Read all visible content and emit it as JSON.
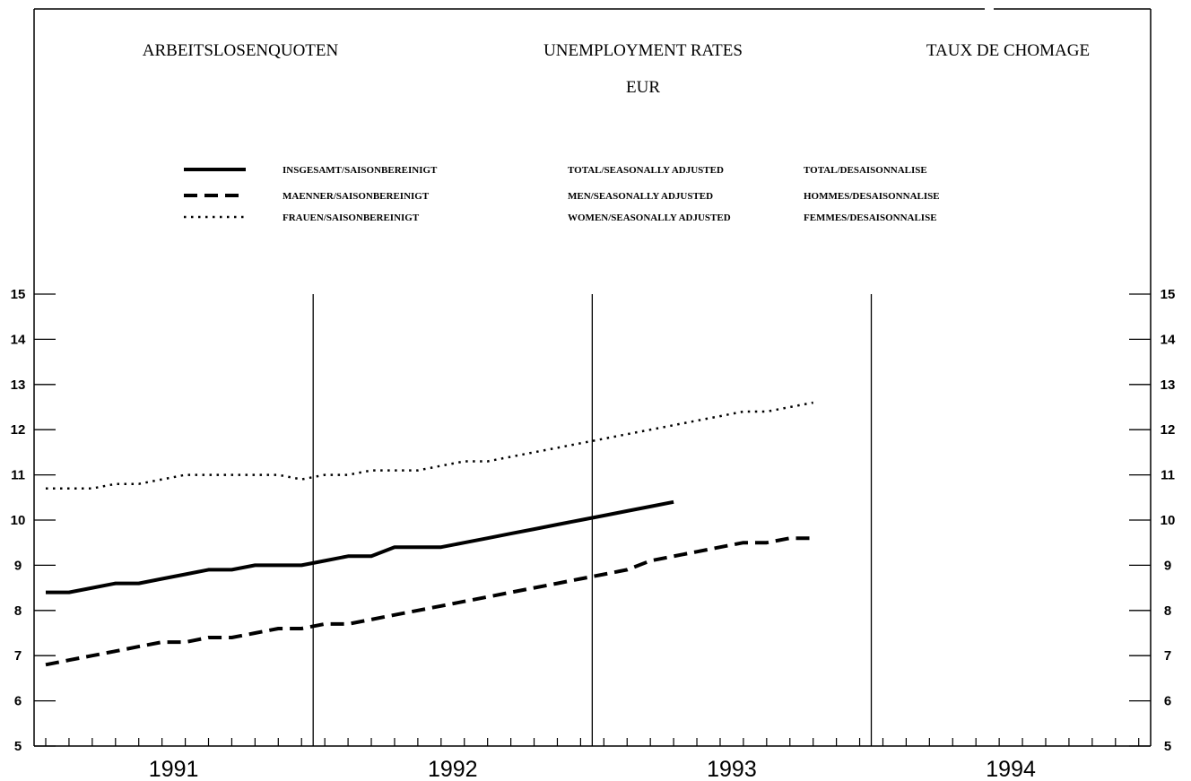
{
  "chart_data": {
    "type": "line",
    "titles": {
      "de": "ARBEITSLOSENQUOTEN",
      "en": "UNEMPLOYMENT RATES",
      "fr": "TAUX DE CHOMAGE",
      "region": "EUR"
    },
    "legend": [
      {
        "style": "solid",
        "de": "INSGESAMT/SAISONBEREINIGT",
        "en": "TOTAL/SEASONALLY ADJUSTED",
        "fr": "TOTAL/DESAISONNALISE"
      },
      {
        "style": "dashed",
        "de": "MAENNER/SAISONBEREINIGT",
        "en": "MEN/SEASONALLY ADJUSTED",
        "fr": "HOMMES/DESAISONNALISE"
      },
      {
        "style": "dotted",
        "de": "FRAUEN/SAISONBEREINIGT",
        "en": "WOMEN/SEASONALLY ADJUSTED",
        "fr": "FEMMES/DESAISONNALISE"
      }
    ],
    "years": [
      "1991",
      "1992",
      "1993",
      "1994"
    ],
    "y_ticks": [
      "5",
      "6",
      "7",
      "8",
      "9",
      "10",
      "11",
      "12",
      "13",
      "14",
      "15"
    ],
    "ylim": [
      5,
      15
    ],
    "x_unit": "months from start of 1991",
    "xlim": [
      0,
      48
    ],
    "grid": "year separators",
    "legend_placement": "top",
    "series": [
      {
        "style": "solid",
        "x": [
          0,
          1,
          2,
          3,
          4,
          5,
          6,
          7,
          8,
          9,
          10,
          11,
          12,
          13,
          14,
          15,
          16,
          17,
          18,
          19,
          20,
          21,
          22,
          23,
          24,
          25,
          26,
          27
        ],
        "values": [
          8.4,
          8.4,
          8.5,
          8.6,
          8.6,
          8.7,
          8.8,
          8.9,
          8.9,
          9.0,
          9.0,
          9.0,
          9.1,
          9.2,
          9.2,
          9.4,
          9.4,
          9.4,
          9.5,
          9.6,
          9.7,
          9.8,
          9.9,
          10.0,
          10.1,
          10.2,
          10.3,
          10.4
        ]
      },
      {
        "style": "dashed",
        "x": [
          0,
          1,
          2,
          3,
          4,
          5,
          6,
          7,
          8,
          9,
          10,
          11,
          12,
          13,
          14,
          15,
          16,
          17,
          18,
          19,
          20,
          21,
          22,
          23,
          24,
          25,
          26,
          27,
          28,
          29,
          30,
          31,
          32,
          33
        ],
        "values": [
          6.8,
          6.9,
          7.0,
          7.1,
          7.2,
          7.3,
          7.3,
          7.4,
          7.4,
          7.5,
          7.6,
          7.6,
          7.7,
          7.7,
          7.8,
          7.9,
          8.0,
          8.1,
          8.2,
          8.3,
          8.4,
          8.5,
          8.6,
          8.7,
          8.8,
          8.9,
          9.1,
          9.2,
          9.3,
          9.4,
          9.5,
          9.5,
          9.6,
          9.6
        ]
      },
      {
        "style": "dotted",
        "x": [
          0,
          1,
          2,
          3,
          4,
          5,
          6,
          7,
          8,
          9,
          10,
          11,
          12,
          13,
          14,
          15,
          16,
          17,
          18,
          19,
          20,
          21,
          22,
          23,
          24,
          25,
          26,
          27,
          28,
          29,
          30,
          31,
          32,
          33
        ],
        "values": [
          10.7,
          10.7,
          10.7,
          10.8,
          10.8,
          10.9,
          11.0,
          11.0,
          11.0,
          11.0,
          11.0,
          10.9,
          11.0,
          11.0,
          11.1,
          11.1,
          11.1,
          11.2,
          11.3,
          11.3,
          11.4,
          11.5,
          11.6,
          11.7,
          11.8,
          11.9,
          12.0,
          12.1,
          12.2,
          12.3,
          12.4,
          12.4,
          12.5,
          12.6
        ]
      }
    ]
  }
}
